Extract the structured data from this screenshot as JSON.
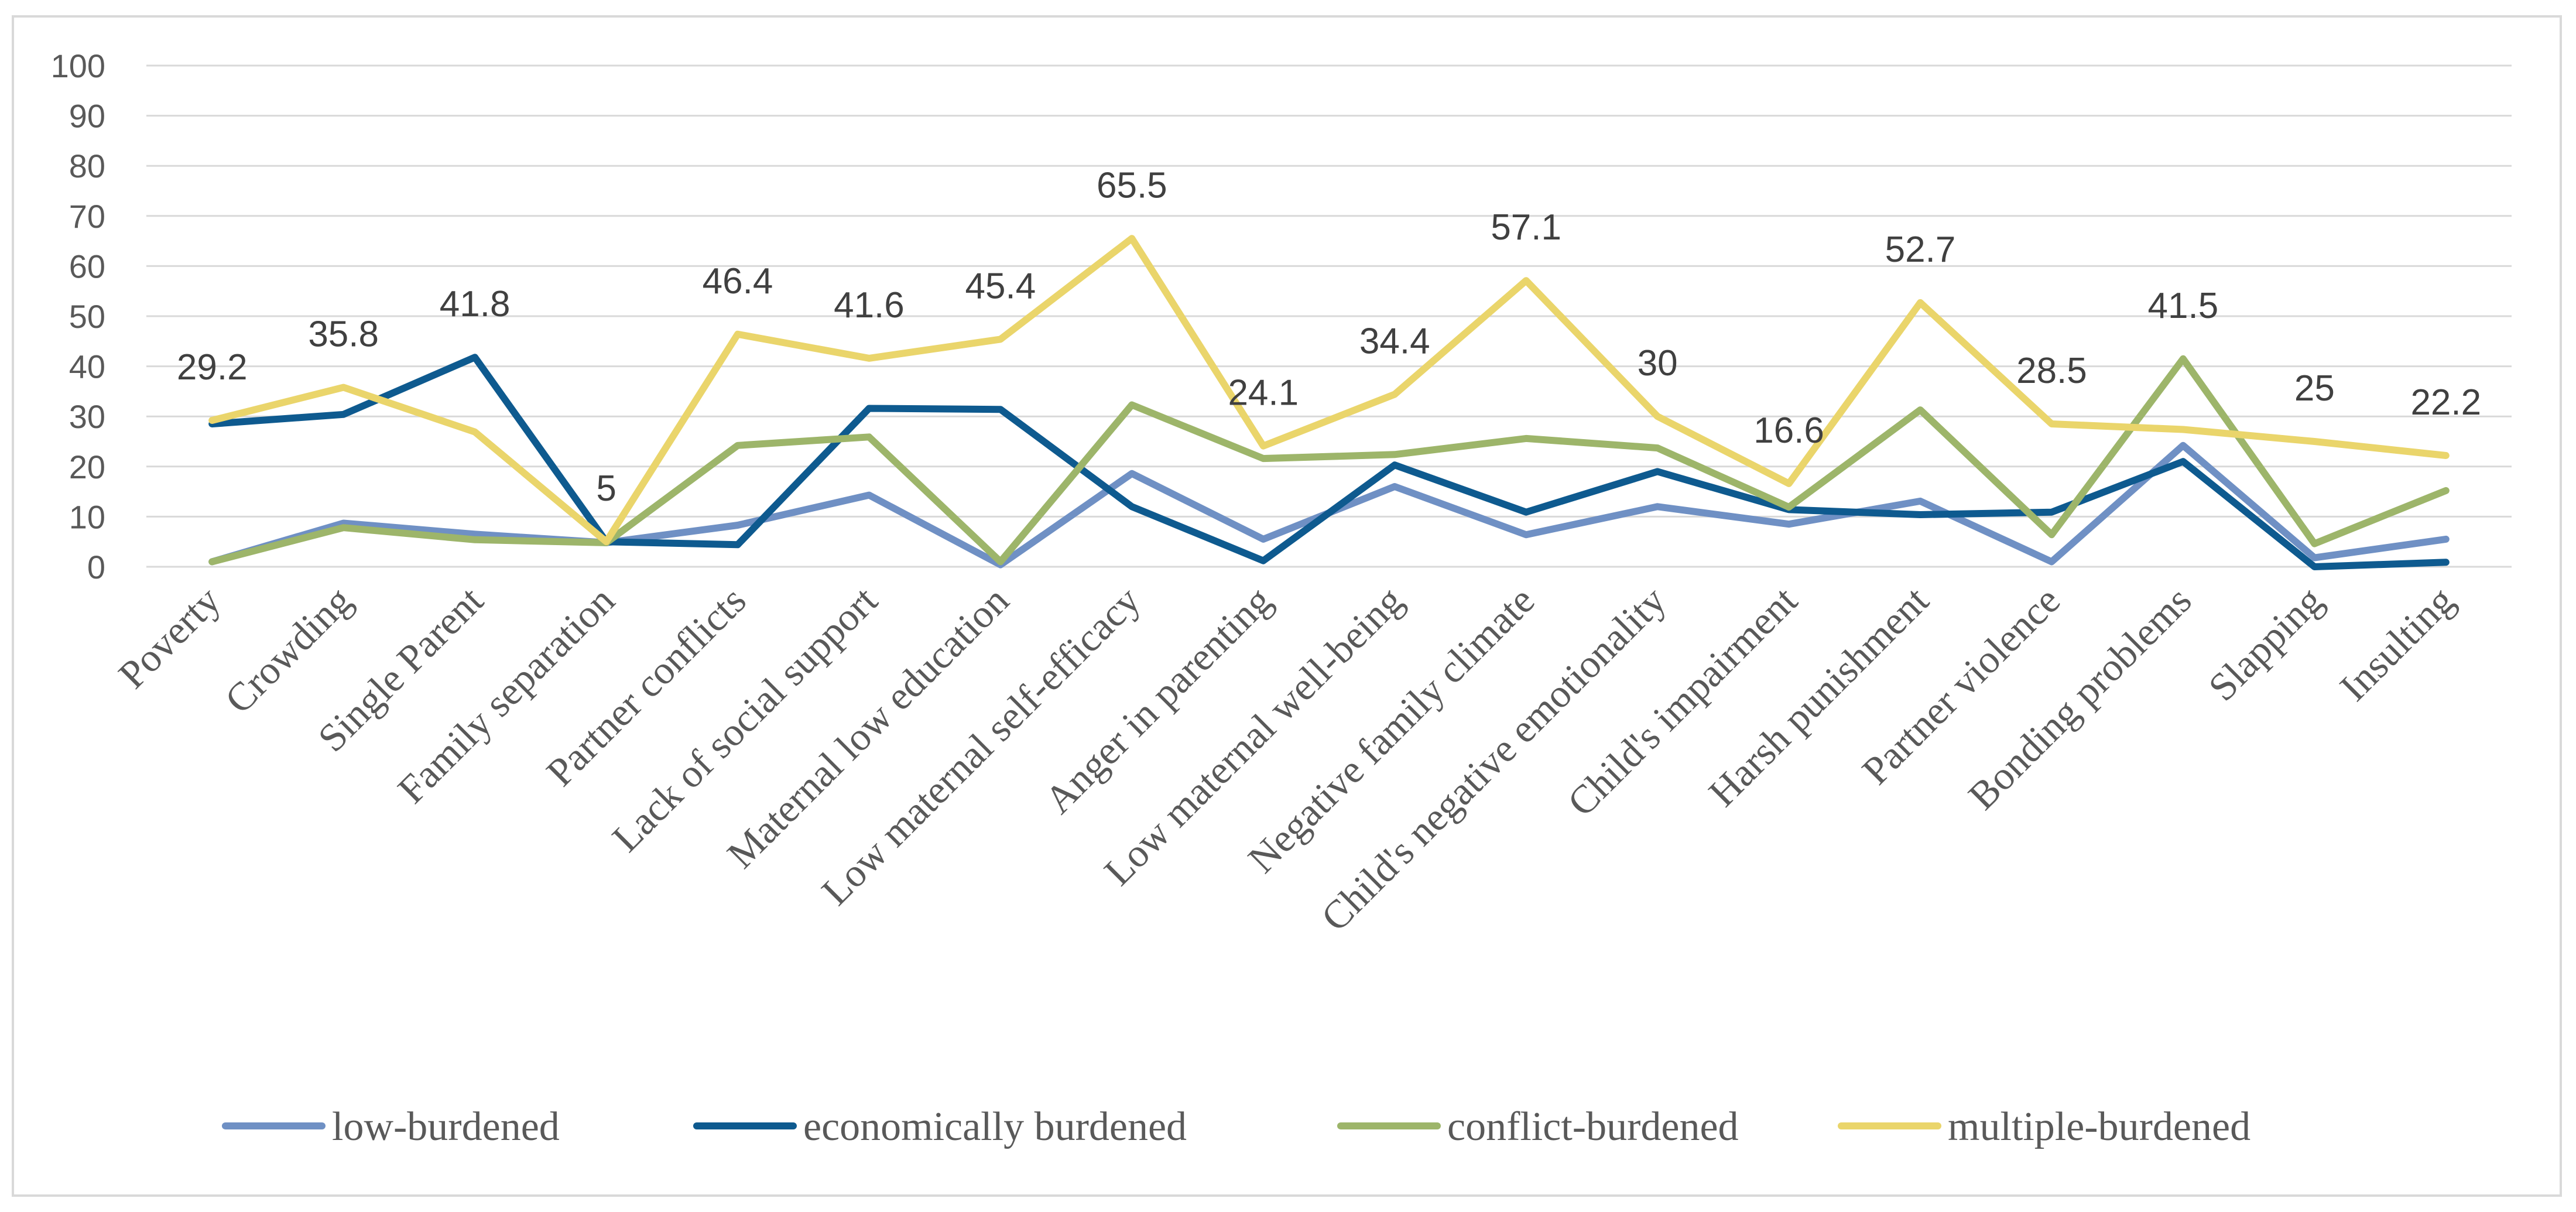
{
  "chart_data": {
    "type": "line",
    "title": "",
    "xlabel": "",
    "ylabel": "",
    "ylim": [
      0,
      100
    ],
    "yticks": [
      "0",
      "10",
      "20",
      "30",
      "40",
      "50",
      "60",
      "70",
      "80",
      "90",
      "100"
    ],
    "grid": true,
    "legend_position": "bottom",
    "categories": [
      "Poverty",
      "Crowding",
      "Single Parent",
      "Family separation",
      "Partner conflicts",
      "Lack of social support",
      "Maternal low education",
      "Low maternal self-efficacy",
      "Anger in parenting",
      "Low maternal well-being",
      "Negative family climate",
      "Child's negative emotionality",
      "Child's impairment",
      "Harsh punishment",
      "Partner violence",
      "Bonding problems",
      "Slapping",
      "Insulting"
    ],
    "series": [
      {
        "name": "low-burdened",
        "color": "#6f90c4",
        "values": [
          1.0,
          8.7,
          6.5,
          4.8,
          8.3,
          14.3,
          0.4,
          18.6,
          5.5,
          16.0,
          6.4,
          12.0,
          8.5,
          13.1,
          1.0,
          24.2,
          1.8,
          5.5
        ]
      },
      {
        "name": "economically burdened",
        "color": "#0e5a8f",
        "values": [
          28.5,
          30.4,
          41.8,
          5.0,
          4.4,
          31.6,
          31.4,
          12.0,
          1.2,
          20.3,
          10.9,
          19.0,
          11.4,
          10.4,
          10.9,
          21.0,
          0.0,
          0.9
        ]
      },
      {
        "name": "conflict-burdened",
        "color": "#9db56a",
        "values": [
          1.0,
          7.8,
          5.4,
          4.8,
          24.2,
          25.9,
          1.0,
          32.3,
          21.6,
          22.4,
          25.6,
          23.7,
          11.9,
          31.3,
          6.4,
          41.5,
          4.6,
          15.2
        ]
      },
      {
        "name": "multiple-burdened",
        "color": "#ead56b",
        "values": [
          29.2,
          35.8,
          26.9,
          5.0,
          46.4,
          41.6,
          45.4,
          65.5,
          24.1,
          34.4,
          57.1,
          30.0,
          16.6,
          52.7,
          28.5,
          27.4,
          25.0,
          22.2
        ]
      }
    ],
    "data_labels": [
      {
        "index": 0,
        "text": "29.2",
        "value": 29.2
      },
      {
        "index": 1,
        "text": "35.8",
        "value": 35.8
      },
      {
        "index": 2,
        "text": "41.8",
        "value": 41.8
      },
      {
        "index": 3,
        "text": "5",
        "value": 5
      },
      {
        "index": 4,
        "text": "46.4",
        "value": 46.4
      },
      {
        "index": 5,
        "text": "41.6",
        "value": 41.6
      },
      {
        "index": 6,
        "text": "45.4",
        "value": 45.4
      },
      {
        "index": 7,
        "text": "65.5",
        "value": 65.5
      },
      {
        "index": 8,
        "text": "24.1",
        "value": 24.1
      },
      {
        "index": 9,
        "text": "34.4",
        "value": 34.4
      },
      {
        "index": 10,
        "text": "57.1",
        "value": 57.1
      },
      {
        "index": 11,
        "text": "30",
        "value": 30
      },
      {
        "index": 12,
        "text": "16.6",
        "value": 16.6
      },
      {
        "index": 13,
        "text": "52.7",
        "value": 52.7
      },
      {
        "index": 14,
        "text": "28.5",
        "value": 28.5
      },
      {
        "index": 15,
        "text": "41.5",
        "value": 41.5
      },
      {
        "index": 16,
        "text": "25",
        "value": 25
      },
      {
        "index": 17,
        "text": "22.2",
        "value": 22.2
      }
    ]
  }
}
